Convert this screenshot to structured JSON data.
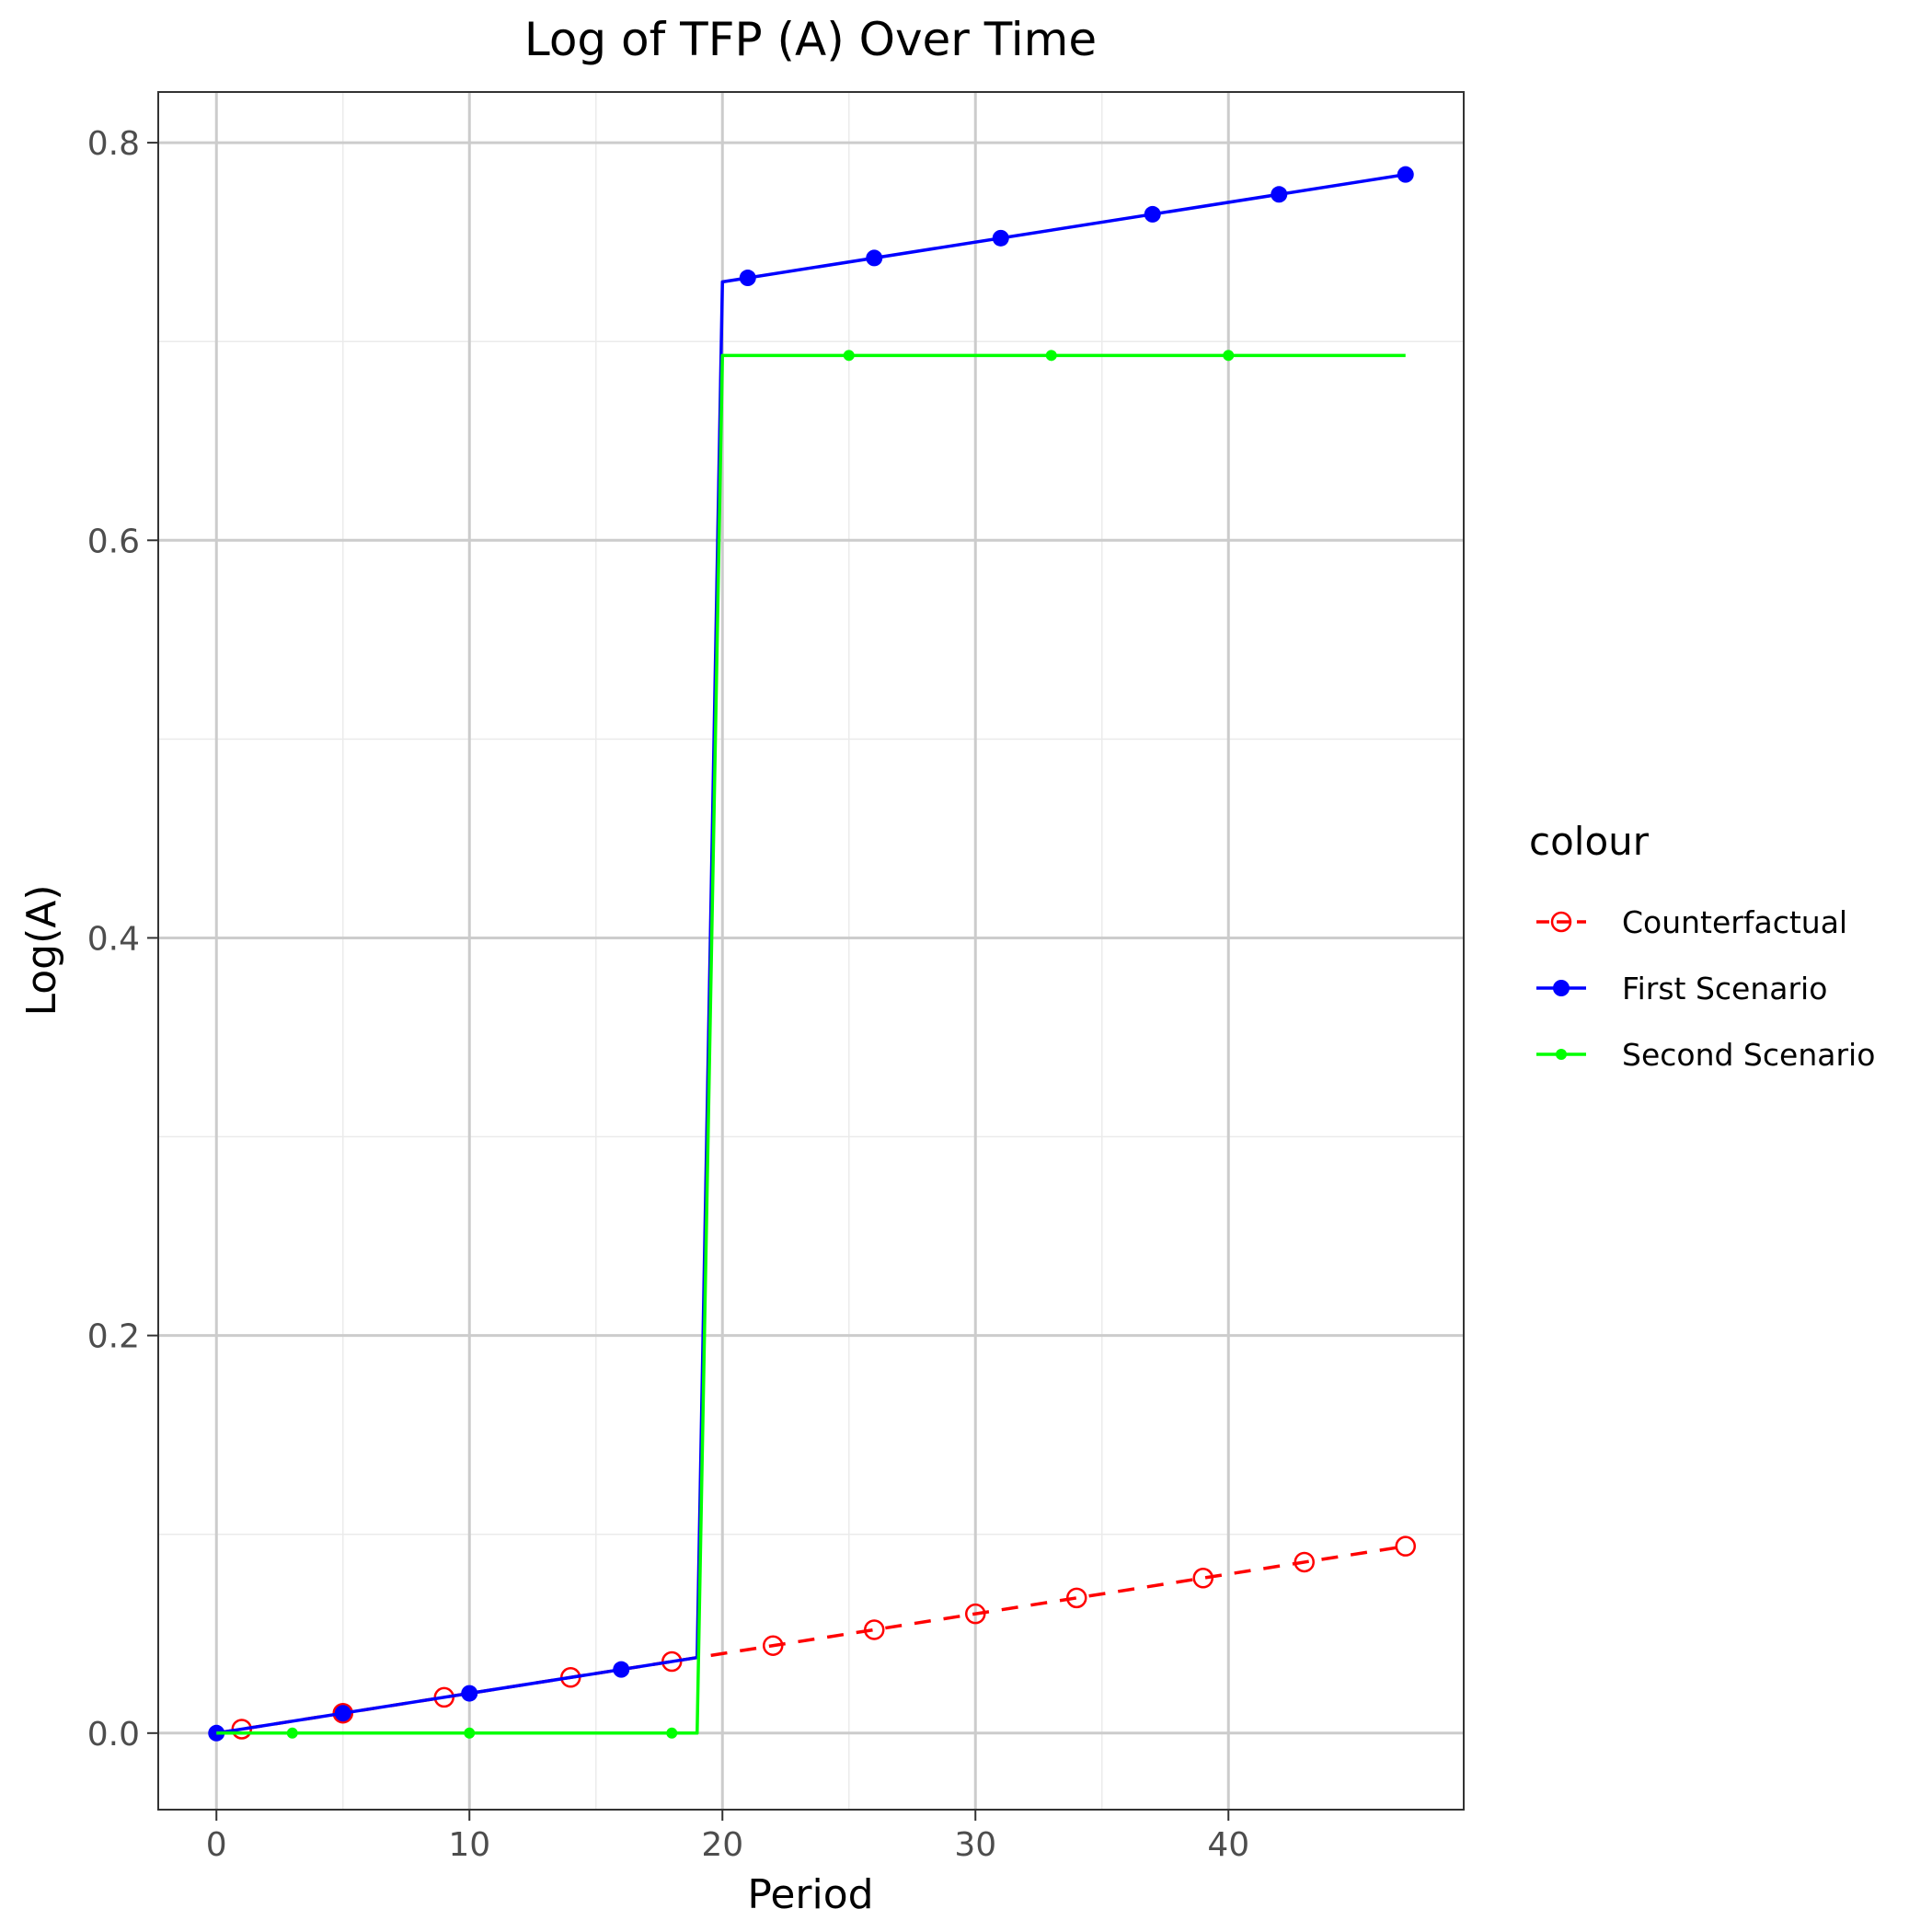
{
  "chart_data": {
    "type": "line",
    "title": "Log of TFP (A) Over Time",
    "xlabel": "Period",
    "ylabel": "Log(A)",
    "xlim": [
      -2.3,
      49.3
    ],
    "ylim": [
      -0.0385,
      0.8255
    ],
    "xticks": [
      0,
      10,
      20,
      30,
      40
    ],
    "yticks": [
      0.0,
      0.2,
      0.4,
      0.6,
      0.8
    ],
    "ytick_labels": [
      "0.0",
      "0.2",
      "0.4",
      "0.6",
      "0.8"
    ],
    "grid": true,
    "legend": {
      "title": "colour",
      "position": "right"
    },
    "series": [
      {
        "name": "Counterfactual",
        "color": "#ff0000",
        "line_style": "dashed",
        "marker": "open-circle",
        "x": [
          0,
          19,
          20,
          47
        ],
        "y": [
          0,
          0.038,
          0.04,
          0.094
        ],
        "marker_x": [
          1,
          5,
          9,
          14,
          18,
          22,
          26,
          30,
          34,
          39,
          43,
          47
        ],
        "marker_y": [
          0.002,
          0.01,
          0.018,
          0.028,
          0.036,
          0.044,
          0.052,
          0.06,
          0.068,
          0.078,
          0.086,
          0.094
        ]
      },
      {
        "name": "First Scenario",
        "color": "#0000ff",
        "line_style": "solid",
        "marker": "filled-circle",
        "x": [
          0,
          19,
          20,
          47
        ],
        "y": [
          0,
          0.038,
          0.73,
          0.784
        ],
        "marker_x": [
          0,
          5,
          10,
          16,
          21,
          26,
          31,
          37,
          42,
          47
        ],
        "marker_y": [
          0,
          0.01,
          0.02,
          0.032,
          0.732,
          0.742,
          0.752,
          0.764,
          0.774,
          0.784
        ]
      },
      {
        "name": "Second Scenario",
        "color": "#00ff00",
        "line_style": "solid",
        "marker": "small-filled-circle",
        "x": [
          0,
          19,
          20,
          47
        ],
        "y": [
          0,
          0,
          0.693,
          0.693
        ],
        "marker_x": [
          3,
          10,
          18,
          25,
          33,
          40
        ],
        "marker_y": [
          0,
          0,
          0,
          0.693,
          0.693,
          0.693
        ]
      }
    ]
  }
}
